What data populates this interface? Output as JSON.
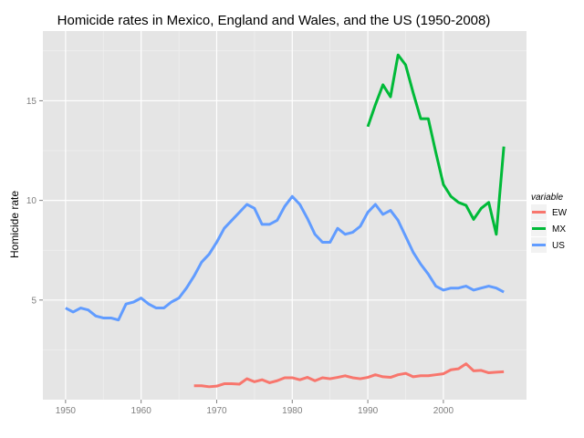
{
  "chart_data": {
    "type": "line",
    "title": "Homicide rates in Mexico, England and Wales, and the US (1950-2008)",
    "xlabel": "",
    "ylabel": "Homicide rate",
    "xlim": [
      1947,
      2011
    ],
    "ylim": [
      0,
      18.5
    ],
    "xticks": [
      1950,
      1960,
      1970,
      1980,
      1990,
      2000
    ],
    "yticks": [
      5,
      10,
      15
    ],
    "grid": true,
    "legend": {
      "title": "variable",
      "position": "right"
    },
    "series": [
      {
        "name": "EW",
        "color": "#F8766D",
        "x": [
          1967,
          1968,
          1969,
          1970,
          1971,
          1972,
          1973,
          1974,
          1975,
          1976,
          1977,
          1978,
          1979,
          1980,
          1981,
          1982,
          1983,
          1984,
          1985,
          1986,
          1987,
          1988,
          1989,
          1990,
          1991,
          1992,
          1993,
          1994,
          1995,
          1996,
          1997,
          1998,
          1999,
          2000,
          2001,
          2002,
          2003,
          2004,
          2005,
          2006,
          2007,
          2008
        ],
        "values": [
          0.7,
          0.7,
          0.65,
          0.68,
          0.8,
          0.8,
          0.78,
          1.05,
          0.9,
          1.0,
          0.85,
          0.95,
          1.1,
          1.1,
          1.0,
          1.12,
          0.95,
          1.1,
          1.05,
          1.12,
          1.2,
          1.1,
          1.05,
          1.12,
          1.25,
          1.15,
          1.12,
          1.25,
          1.32,
          1.15,
          1.2,
          1.2,
          1.25,
          1.3,
          1.5,
          1.55,
          1.8,
          1.45,
          1.47,
          1.35,
          1.38,
          1.4
        ]
      },
      {
        "name": "MX",
        "color": "#00BA38",
        "x": [
          1990,
          1991,
          1992,
          1993,
          1994,
          1995,
          1996,
          1997,
          1998,
          1999,
          2000,
          2001,
          2002,
          2003,
          2004,
          2005,
          2006,
          2007,
          2008
        ],
        "values": [
          13.7,
          14.8,
          15.8,
          15.2,
          17.3,
          16.8,
          15.4,
          14.1,
          14.1,
          12.4,
          10.8,
          10.2,
          9.9,
          9.75,
          9.05,
          9.6,
          9.9,
          8.3,
          12.7
        ]
      },
      {
        "name": "US",
        "color": "#619CFF",
        "x": [
          1950,
          1951,
          1952,
          1953,
          1954,
          1955,
          1956,
          1957,
          1958,
          1959,
          1960,
          1961,
          1962,
          1963,
          1964,
          1965,
          1966,
          1967,
          1968,
          1969,
          1970,
          1971,
          1972,
          1973,
          1974,
          1975,
          1976,
          1977,
          1978,
          1979,
          1980,
          1981,
          1982,
          1983,
          1984,
          1985,
          1986,
          1987,
          1988,
          1989,
          1990,
          1991,
          1992,
          1993,
          1994,
          1995,
          1996,
          1997,
          1998,
          1999,
          2000,
          2001,
          2002,
          2003,
          2004,
          2005,
          2006,
          2007,
          2008
        ],
        "values": [
          4.6,
          4.4,
          4.6,
          4.5,
          4.2,
          4.1,
          4.1,
          4.0,
          4.8,
          4.9,
          5.1,
          4.8,
          4.6,
          4.6,
          4.9,
          5.1,
          5.6,
          6.2,
          6.9,
          7.3,
          7.9,
          8.6,
          9.0,
          9.4,
          9.8,
          9.6,
          8.8,
          8.8,
          9.0,
          9.7,
          10.2,
          9.8,
          9.1,
          8.3,
          7.9,
          7.9,
          8.6,
          8.3,
          8.4,
          8.7,
          9.4,
          9.8,
          9.3,
          9.5,
          9.0,
          8.2,
          7.4,
          6.8,
          6.3,
          5.7,
          5.5,
          5.6,
          5.6,
          5.7,
          5.5,
          5.6,
          5.7,
          5.6,
          5.4
        ]
      }
    ]
  }
}
